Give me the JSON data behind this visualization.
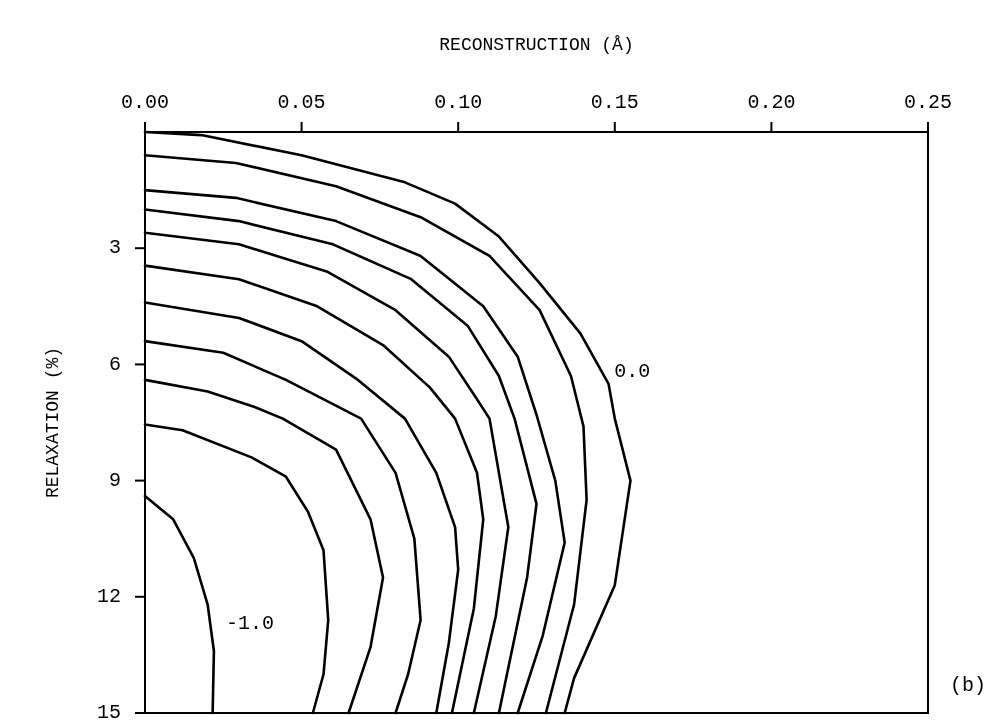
{
  "chart_data": {
    "type": "line",
    "xlabel": "RECONSTRUCTION (Å)",
    "ylabel": "RELAXATION (%)",
    "xlim": [
      0,
      0.25
    ],
    "xticks": [
      {
        "value": 0,
        "label": "0.00"
      },
      {
        "value": 0.05,
        "label": "0.05"
      },
      {
        "value": 0.1,
        "label": "0.10"
      },
      {
        "value": 0.15,
        "label": "0.15"
      },
      {
        "value": 0.2,
        "label": "0.20"
      },
      {
        "value": 0.25,
        "label": "0.25"
      }
    ],
    "ylim": [
      15,
      0
    ],
    "yticks": [
      3,
      6,
      9,
      12,
      15
    ],
    "series": [
      {
        "color": "#000000",
        "x": [
          0,
          0.018,
          0.05,
          0.083,
          0.099,
          0.113,
          0.126,
          0.139,
          0.148,
          0.15,
          0.155,
          0.15,
          0.137,
          0.134
        ],
        "values": [
          0,
          0.08,
          0.6,
          1.3,
          1.85,
          2.7,
          3.9,
          5.2,
          6.5,
          7.4,
          9.0,
          11.7,
          14.1,
          15
        ]
      },
      {
        "color": "#000000",
        "x": [
          0,
          0.029,
          0.061,
          0.088,
          0.11,
          0.126,
          0.136,
          0.14,
          0.141,
          0.137,
          0.128
        ],
        "values": [
          0.6,
          0.8,
          1.4,
          2.2,
          3.2,
          4.6,
          6.3,
          7.6,
          9.5,
          12.2,
          15
        ]
      },
      {
        "color": "#000000",
        "x": [
          0,
          0.029,
          0.061,
          0.088,
          0.108,
          0.119,
          0.125,
          0.131,
          0.134,
          0.127,
          0.119
        ],
        "values": [
          1.5,
          1.7,
          2.3,
          3.2,
          4.5,
          5.8,
          7.3,
          9.0,
          10.6,
          13,
          15
        ]
      },
      {
        "color": "#000000",
        "x": [
          0,
          0.03,
          0.06,
          0.085,
          0.103,
          0.113,
          0.118,
          0.125,
          0.122,
          0.113
        ],
        "values": [
          2.0,
          2.3,
          2.9,
          3.8,
          5.0,
          6.3,
          7.4,
          9.6,
          11.5,
          15
        ]
      },
      {
        "color": "#000000",
        "x": [
          0,
          0.03,
          0.058,
          0.08,
          0.097,
          0.106,
          0.11,
          0.116,
          0.112,
          0.105
        ],
        "values": [
          2.6,
          2.9,
          3.6,
          4.6,
          5.8,
          6.9,
          7.4,
          10.2,
          12.5,
          15
        ]
      },
      {
        "color": "#000000",
        "x": [
          0,
          0.03,
          0.055,
          0.076,
          0.091,
          0.099,
          0.106,
          0.108,
          0.105,
          0.098
        ],
        "values": [
          3.45,
          3.8,
          4.5,
          5.5,
          6.6,
          7.4,
          8.8,
          10,
          12.3,
          15
        ]
      },
      {
        "color": "#000000",
        "x": [
          0,
          0.03,
          0.05,
          0.068,
          0.083,
          0.093,
          0.099,
          0.1,
          0.097,
          0.093
        ],
        "values": [
          4.4,
          4.8,
          5.4,
          6.4,
          7.4,
          8.8,
          10.2,
          11.3,
          13.2,
          15
        ]
      },
      {
        "color": "#000000",
        "x": [
          0,
          0.025,
          0.045,
          0.069,
          0.08,
          0.086,
          0.088,
          0.084,
          0.08
        ],
        "values": [
          5.4,
          5.7,
          6.4,
          7.4,
          8.8,
          10.5,
          12.6,
          14,
          15
        ]
      },
      {
        "color": "#000000",
        "x": [
          0,
          0.02,
          0.035,
          0.044,
          0.061,
          0.072,
          0.076,
          0.072,
          0.065
        ],
        "values": [
          6.4,
          6.7,
          7.1,
          7.4,
          8.2,
          10,
          11.5,
          13.3,
          15
        ]
      },
      {
        "color": "#000000",
        "x": [
          0,
          0.012,
          0.034,
          0.045,
          0.052,
          0.057,
          0.0585,
          0.057,
          0.0536
        ],
        "values": [
          7.55,
          7.7,
          8.4,
          8.9,
          9.8,
          10.8,
          12.6,
          14,
          15
        ]
      },
      {
        "color": "#000000",
        "x": [
          0,
          0.009,
          0.0156,
          0.02,
          0.022,
          0.0216
        ],
        "values": [
          9.4,
          10.0,
          11.0,
          12.2,
          13.4,
          15
        ]
      }
    ],
    "annotations": [
      {
        "text": "0.0",
        "x": 0.146,
        "y": 6.2
      },
      {
        "text": "-1.0",
        "x": 0.022,
        "y": 12.7
      },
      "(b)"
    ]
  }
}
